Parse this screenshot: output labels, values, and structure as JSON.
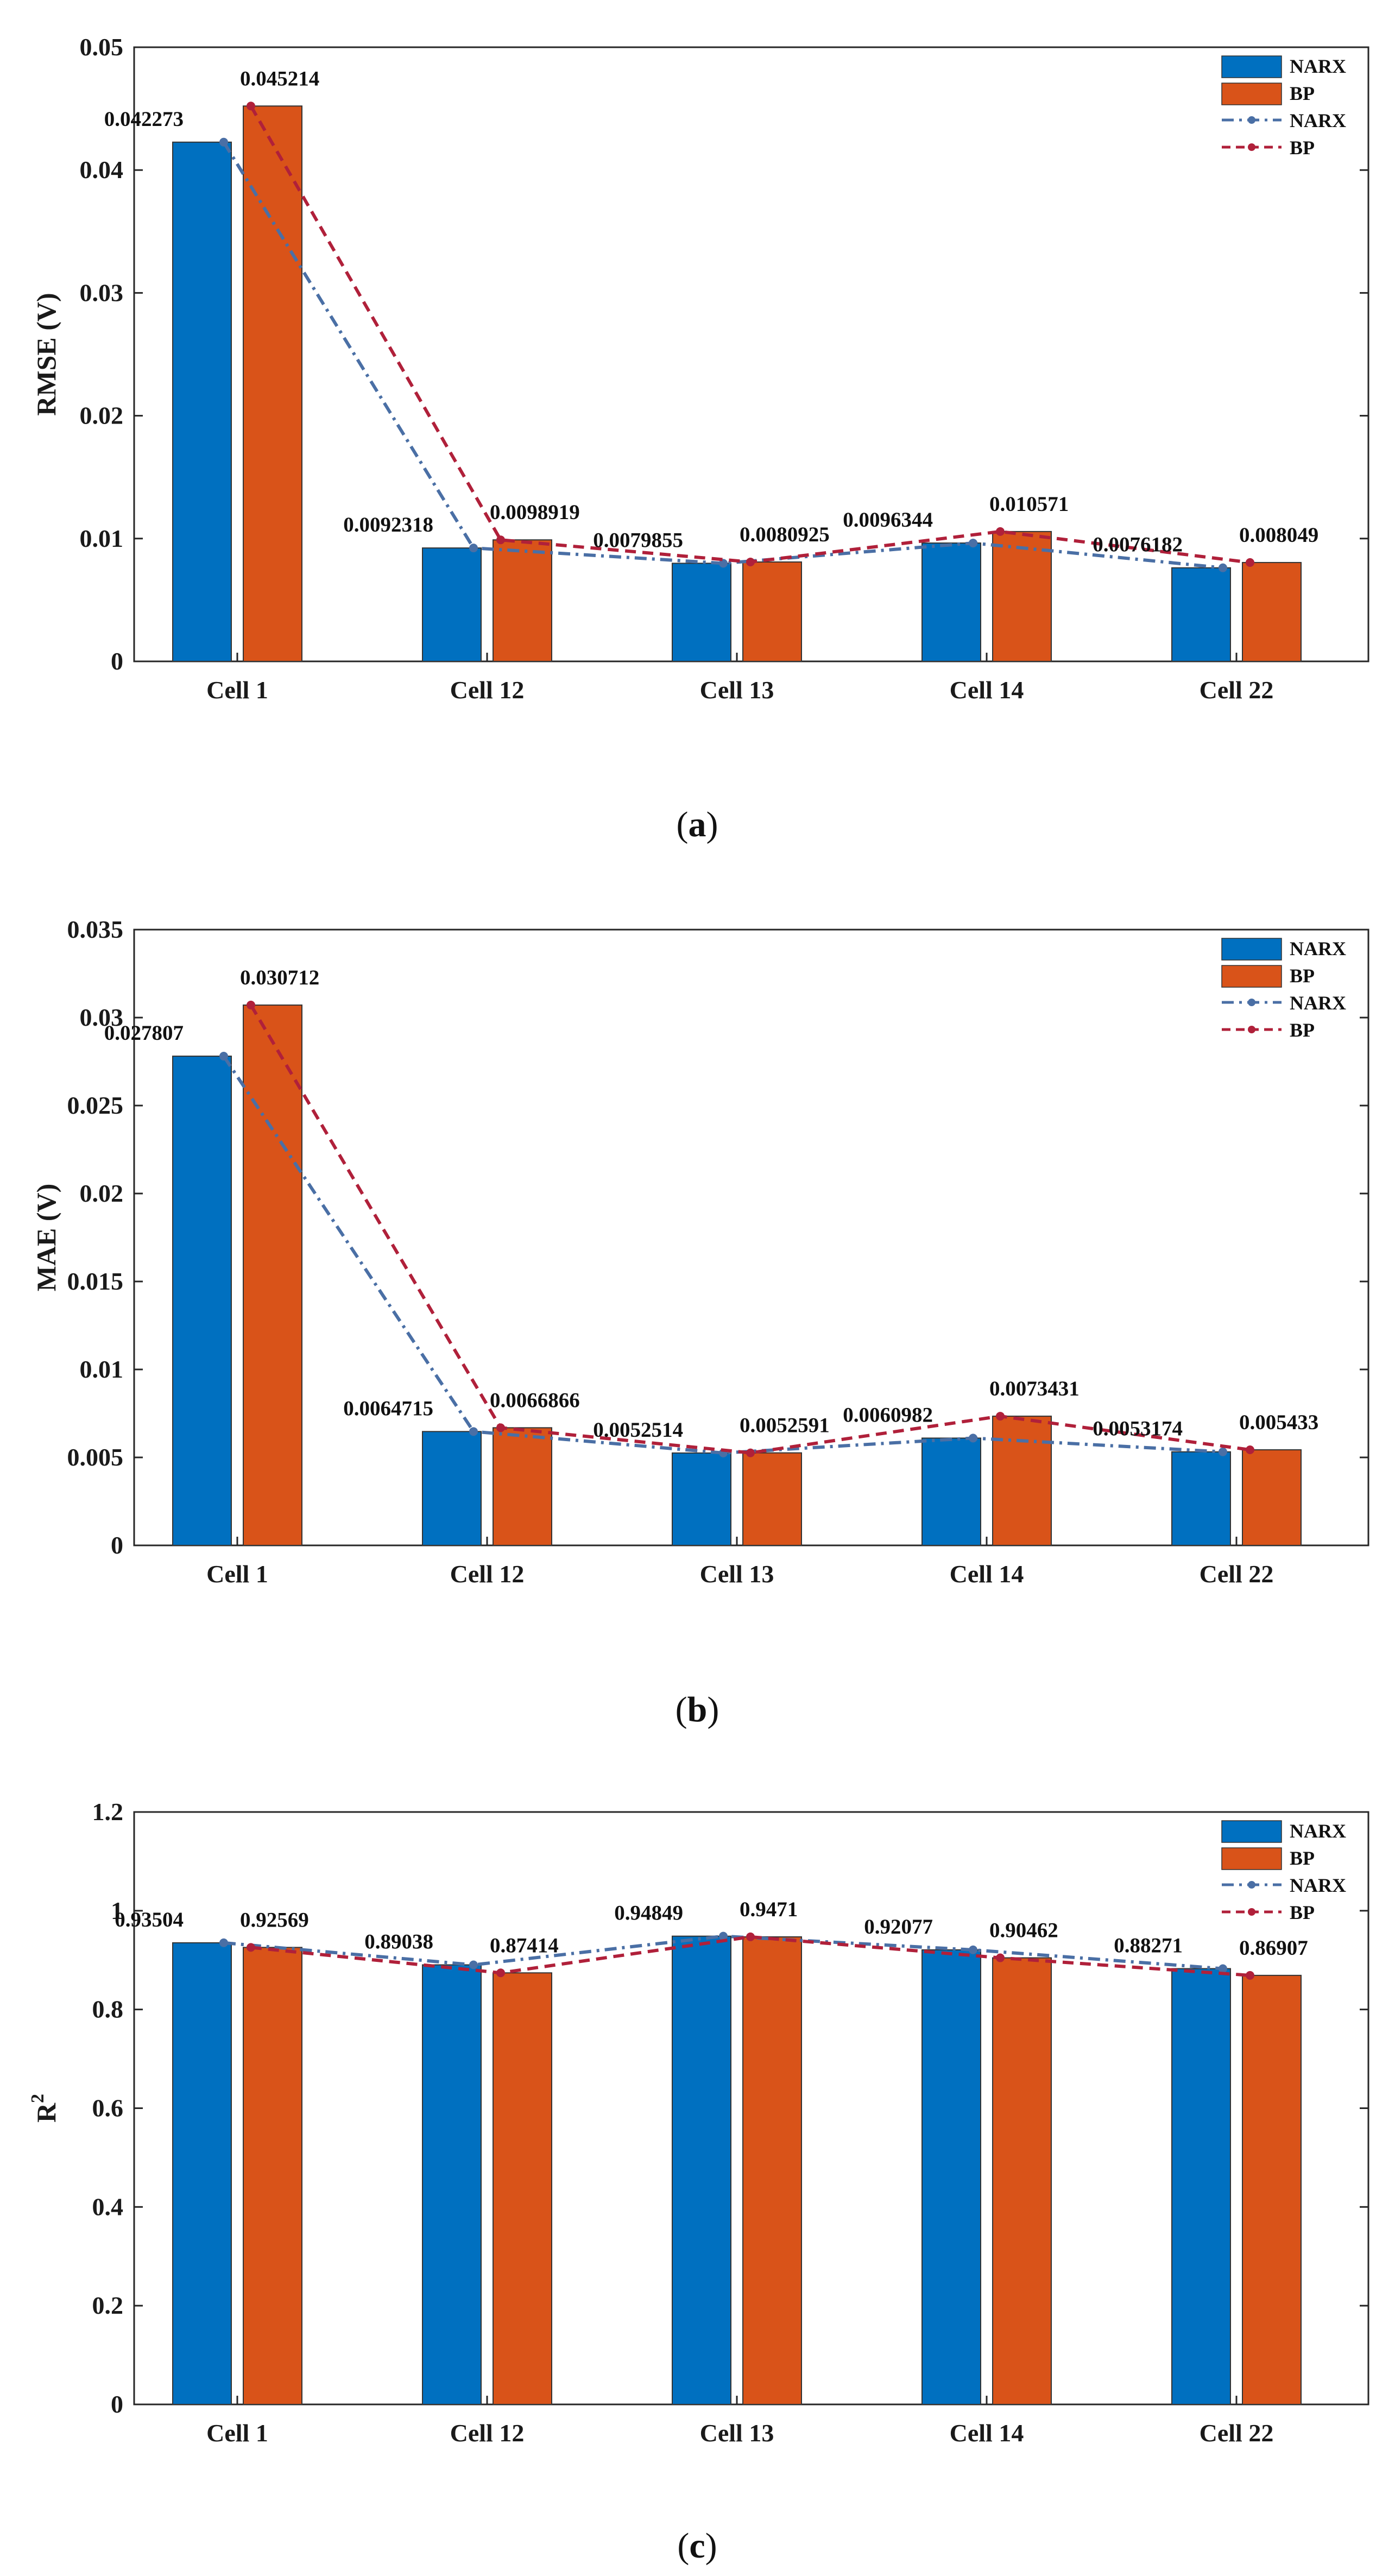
{
  "colors": {
    "narx_bar": "#0070c0",
    "bp_bar": "#d95319",
    "narx_line": "#4a6fa5",
    "bp_line": "#b0203a"
  },
  "chart_data": [
    {
      "type": "bar",
      "panel": "a",
      "caption_letter": "a",
      "categories": [
        "Cell 1",
        "Cell 12",
        "Cell 13",
        "Cell 14",
        "Cell 22"
      ],
      "ylabel": "RMSE (V)",
      "ylim": [
        0,
        0.05
      ],
      "yticks": [
        0,
        0.01,
        0.02,
        0.03,
        0.04,
        0.05
      ],
      "ytick_labels": [
        "0",
        "0.01",
        "0.02",
        "0.03",
        "0.04",
        "0.05"
      ],
      "legend_position": "top-right",
      "legend": [
        "NARX",
        "BP",
        "NARX",
        "BP"
      ],
      "series": [
        {
          "name": "NARX",
          "values": [
            0.042273,
            0.0092318,
            0.0079855,
            0.0096344,
            0.0076182
          ],
          "labels": [
            "0.042273",
            "0.0092318",
            "0.0079855",
            "0.0096344",
            "0.0076182"
          ]
        },
        {
          "name": "BP",
          "values": [
            0.045214,
            0.0098919,
            0.0080925,
            0.010571,
            0.008049
          ],
          "labels": [
            "0.045214",
            "0.0098919",
            "0.0080925",
            "0.010571",
            "0.008049"
          ]
        }
      ]
    },
    {
      "type": "bar",
      "panel": "b",
      "caption_letter": "b",
      "categories": [
        "Cell 1",
        "Cell 12",
        "Cell 13",
        "Cell 14",
        "Cell 22"
      ],
      "ylabel": "MAE (V)",
      "ylim": [
        0,
        0.035
      ],
      "yticks": [
        0,
        0.005,
        0.01,
        0.015,
        0.02,
        0.025,
        0.03,
        0.035
      ],
      "ytick_labels": [
        "0",
        "0.005",
        "0.01",
        "0.015",
        "0.02",
        "0.025",
        "0.03",
        "0.035"
      ],
      "legend_position": "top-right",
      "legend": [
        "NARX",
        "BP",
        "NARX",
        "BP"
      ],
      "series": [
        {
          "name": "NARX",
          "values": [
            0.027807,
            0.0064715,
            0.0052514,
            0.0060982,
            0.0053174
          ],
          "labels": [
            "0.027807",
            "0.0064715",
            "0.0052514",
            "0.0060982",
            "0.0053174"
          ]
        },
        {
          "name": "BP",
          "values": [
            0.030712,
            0.0066866,
            0.0052591,
            0.0073431,
            0.005433
          ],
          "labels": [
            "0.030712",
            "0.0066866",
            "0.0052591",
            "0.0073431",
            "0.005433"
          ]
        }
      ]
    },
    {
      "type": "bar",
      "panel": "c",
      "caption_letter": "c",
      "categories": [
        "Cell 1",
        "Cell 12",
        "Cell 13",
        "Cell 14",
        "Cell 22"
      ],
      "ylabel": "R",
      "ylabel_sup": "2",
      "ylim": [
        0,
        1.2
      ],
      "yticks": [
        0,
        0.2,
        0.4,
        0.6,
        0.8,
        1,
        1.2
      ],
      "ytick_labels": [
        "0",
        "0.2",
        "0.4",
        "0.6",
        "0.8",
        "1",
        "1.2"
      ],
      "legend_position": "top-right",
      "legend": [
        "NARX",
        "BP",
        "NARX",
        "BP"
      ],
      "series": [
        {
          "name": "NARX",
          "values": [
            0.93504,
            0.89038,
            0.94849,
            0.92077,
            0.88271
          ],
          "labels": [
            "0.93504",
            "0.89038",
            "0.94849",
            "0.92077",
            "0.88271"
          ]
        },
        {
          "name": "BP",
          "values": [
            0.92569,
            0.87414,
            0.9471,
            0.90462,
            0.86907
          ],
          "labels": [
            "0.92569",
            "0.87414",
            "0.9471",
            "0.90462",
            "0.86907"
          ]
        }
      ]
    }
  ]
}
